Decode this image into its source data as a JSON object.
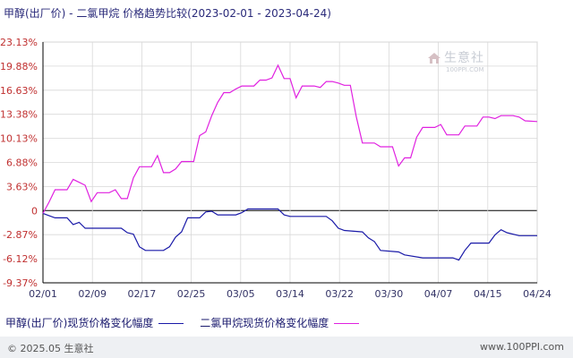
{
  "title": "甲醇(出厂价) - 二氯甲烷 价格趋势比较(2023-02-01 - 2023-04-24)",
  "watermark": {
    "name": "生意社",
    "url": "100PPI.COM"
  },
  "footer": {
    "left": "© 2025.05 生意社",
    "right": "www.100PPI.com"
  },
  "colors": {
    "series1": "#1a1aa8",
    "series2": "#e020e0",
    "grid": "#d8d8d8",
    "axis": "#000000",
    "tick": "#333366"
  },
  "chart_data": {
    "type": "line",
    "title": "甲醇(出厂价) - 二氯甲烷 价格趋势比较(2023-02-01 - 2023-04-24)",
    "x_ticks": [
      "02/01",
      "02/09",
      "02/17",
      "02/25",
      "03/05",
      "03/14",
      "03/22",
      "03/30",
      "04/07",
      "04/15",
      "04/24"
    ],
    "y_ticks": [
      "23.13%",
      "19.88%",
      "16.63%",
      "13.38%",
      "10.13%",
      "6.88%",
      "3.63%",
      "0",
      "-2.87%",
      "-6.12%",
      "-9.37%"
    ],
    "ylim": [
      -9.37,
      23.13
    ],
    "xlim": [
      "2023-02-01",
      "2023-04-24"
    ],
    "grid": true,
    "legend_position": "bottom",
    "series": [
      {
        "name": "甲醇(出厂价)现货价格变化幅度",
        "points": [
          [
            "2023-02-01",
            0
          ],
          [
            "2023-02-02",
            -0.3
          ],
          [
            "2023-02-03",
            -0.6
          ],
          [
            "2023-02-05",
            -0.6
          ],
          [
            "2023-02-06",
            -1.5
          ],
          [
            "2023-02-07",
            -1.2
          ],
          [
            "2023-02-08",
            -2.0
          ],
          [
            "2023-02-14",
            -2.0
          ],
          [
            "2023-02-15",
            -2.6
          ],
          [
            "2023-02-16",
            -2.8
          ],
          [
            "2023-02-17",
            -4.5
          ],
          [
            "2023-02-18",
            -5.0
          ],
          [
            "2023-02-19",
            -5.0
          ],
          [
            "2023-02-21",
            -5.0
          ],
          [
            "2023-02-22",
            -4.5
          ],
          [
            "2023-02-23",
            -3.2
          ],
          [
            "2023-02-24",
            -2.5
          ],
          [
            "2023-02-25",
            -0.6
          ],
          [
            "2023-02-27",
            -0.6
          ],
          [
            "2023-02-28",
            0.2
          ],
          [
            "2023-03-01",
            0.3
          ],
          [
            "2023-03-02",
            -0.2
          ],
          [
            "2023-03-05",
            -0.2
          ],
          [
            "2023-03-06",
            0.1
          ],
          [
            "2023-03-07",
            0.6
          ],
          [
            "2023-03-12",
            0.6
          ],
          [
            "2023-03-13",
            -0.2
          ],
          [
            "2023-03-14",
            -0.4
          ],
          [
            "2023-03-20",
            -0.4
          ],
          [
            "2023-03-21",
            -1.0
          ],
          [
            "2023-03-22",
            -2.0
          ],
          [
            "2023-03-23",
            -2.3
          ],
          [
            "2023-03-26",
            -2.5
          ],
          [
            "2023-03-27",
            -3.3
          ],
          [
            "2023-03-28",
            -3.8
          ],
          [
            "2023-03-29",
            -5.0
          ],
          [
            "2023-04-01",
            -5.2
          ],
          [
            "2023-04-02",
            -5.6
          ],
          [
            "2023-04-05",
            -6.0
          ],
          [
            "2023-04-10",
            -6.0
          ],
          [
            "2023-04-11",
            -6.3
          ],
          [
            "2023-04-12",
            -5.0
          ],
          [
            "2023-04-13",
            -4.0
          ],
          [
            "2023-04-16",
            -4.0
          ],
          [
            "2023-04-17",
            -2.9
          ],
          [
            "2023-04-18",
            -2.2
          ],
          [
            "2023-04-19",
            -2.6
          ],
          [
            "2023-04-21",
            -3.0
          ],
          [
            "2023-04-24",
            -3.0
          ]
        ]
      },
      {
        "name": "二氯甲烷现货价格变化幅度",
        "points": [
          [
            "2023-02-01",
            0
          ],
          [
            "2023-02-02",
            1.5
          ],
          [
            "2023-02-03",
            3.2
          ],
          [
            "2023-02-05",
            3.2
          ],
          [
            "2023-02-06",
            4.6
          ],
          [
            "2023-02-07",
            4.2
          ],
          [
            "2023-02-08",
            3.8
          ],
          [
            "2023-02-09",
            1.6
          ],
          [
            "2023-02-10",
            2.8
          ],
          [
            "2023-02-12",
            2.8
          ],
          [
            "2023-02-13",
            3.2
          ],
          [
            "2023-02-14",
            2.0
          ],
          [
            "2023-02-15",
            2.0
          ],
          [
            "2023-02-16",
            4.8
          ],
          [
            "2023-02-17",
            6.3
          ],
          [
            "2023-02-19",
            6.3
          ],
          [
            "2023-02-20",
            7.8
          ],
          [
            "2023-02-21",
            5.5
          ],
          [
            "2023-02-22",
            5.5
          ],
          [
            "2023-02-23",
            6.0
          ],
          [
            "2023-02-24",
            7.0
          ],
          [
            "2023-02-25",
            7.0
          ],
          [
            "2023-02-26",
            7.0
          ],
          [
            "2023-02-27",
            10.5
          ],
          [
            "2023-02-28",
            11.0
          ],
          [
            "2023-03-01",
            13.2
          ],
          [
            "2023-03-02",
            15.0
          ],
          [
            "2023-03-03",
            16.3
          ],
          [
            "2023-03-04",
            16.3
          ],
          [
            "2023-03-05",
            16.8
          ],
          [
            "2023-03-06",
            17.2
          ],
          [
            "2023-03-07",
            17.2
          ],
          [
            "2023-03-08",
            17.2
          ],
          [
            "2023-03-09",
            18.0
          ],
          [
            "2023-03-10",
            18.0
          ],
          [
            "2023-03-11",
            18.3
          ],
          [
            "2023-03-12",
            20.0
          ],
          [
            "2023-03-13",
            18.2
          ],
          [
            "2023-03-14",
            18.2
          ],
          [
            "2023-03-15",
            15.6
          ],
          [
            "2023-03-16",
            17.2
          ],
          [
            "2023-03-18",
            17.2
          ],
          [
            "2023-03-19",
            17.0
          ],
          [
            "2023-03-20",
            17.8
          ],
          [
            "2023-03-21",
            17.8
          ],
          [
            "2023-03-22",
            17.6
          ],
          [
            "2023-03-23",
            17.3
          ],
          [
            "2023-03-24",
            17.3
          ],
          [
            "2023-03-25",
            13.0
          ],
          [
            "2023-03-26",
            9.5
          ],
          [
            "2023-03-27",
            9.5
          ],
          [
            "2023-03-28",
            9.5
          ],
          [
            "2023-03-29",
            9.0
          ],
          [
            "2023-03-31",
            9.0
          ],
          [
            "2023-04-01",
            6.4
          ],
          [
            "2023-04-02",
            7.5
          ],
          [
            "2023-04-03",
            7.5
          ],
          [
            "2023-04-04",
            10.3
          ],
          [
            "2023-04-05",
            11.6
          ],
          [
            "2023-04-07",
            11.6
          ],
          [
            "2023-04-08",
            12.0
          ],
          [
            "2023-04-09",
            10.6
          ],
          [
            "2023-04-10",
            10.6
          ],
          [
            "2023-04-11",
            10.6
          ],
          [
            "2023-04-12",
            11.8
          ],
          [
            "2023-04-13",
            11.8
          ],
          [
            "2023-04-14",
            11.8
          ],
          [
            "2023-04-15",
            13.0
          ],
          [
            "2023-04-16",
            13.0
          ],
          [
            "2023-04-17",
            12.8
          ],
          [
            "2023-04-18",
            13.2
          ],
          [
            "2023-04-20",
            13.2
          ],
          [
            "2023-04-21",
            13.0
          ],
          [
            "2023-04-22",
            12.5
          ],
          [
            "2023-04-24",
            12.4
          ]
        ]
      }
    ]
  }
}
